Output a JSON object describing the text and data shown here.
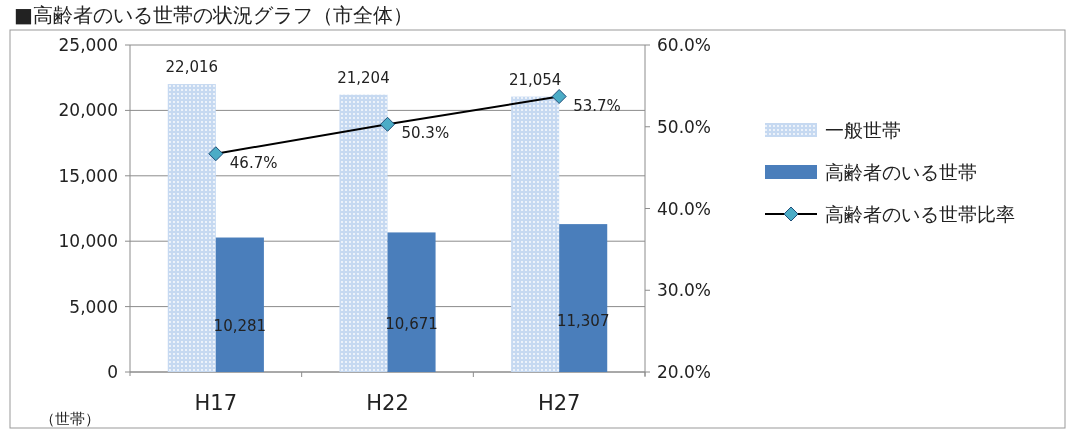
{
  "chart_data": {
    "type": "bar",
    "title": "■高齢者のいる世帯の状況グラフ（市全体）",
    "ylabel": "（世帯）",
    "categories": [
      "H17",
      "H22",
      "H27"
    ],
    "series": [
      {
        "name": "一般世帯",
        "color": "#c6d9f1",
        "values": [
          22016,
          21204,
          21054
        ],
        "value_labels": [
          "22,016",
          "21,204",
          "21,054"
        ]
      },
      {
        "name": "高齢者のいる世帯",
        "color": "#4a7ebb",
        "values": [
          10281,
          10671,
          11307
        ],
        "value_labels": [
          "10,281",
          "10,671",
          "11,307"
        ]
      },
      {
        "name": "高齢者のいる世帯比率",
        "type": "line",
        "axis": "y2",
        "color": "#000000",
        "marker": "diamond",
        "values": [
          46.7,
          50.3,
          53.7
        ],
        "value_labels": [
          "46.7%",
          "50.3%",
          "53.7%"
        ]
      }
    ],
    "ylim": [
      0,
      25000
    ],
    "yticks": [
      {
        "value": 0,
        "label": "0"
      },
      {
        "value": 5000,
        "label": "5,000"
      },
      {
        "value": 10000,
        "label": "10,000"
      },
      {
        "value": 15000,
        "label": "15,000"
      },
      {
        "value": 20000,
        "label": "20,000"
      },
      {
        "value": 25000,
        "label": "25,000"
      }
    ],
    "y2lim": [
      20,
      60
    ],
    "y2ticks": [
      {
        "value": 20,
        "label": "20.0%"
      },
      {
        "value": 30,
        "label": "30.0%"
      },
      {
        "value": 40,
        "label": "40.0%"
      },
      {
        "value": 50,
        "label": "50.0%"
      },
      {
        "value": 60,
        "label": "60.0%"
      }
    ],
    "grid": "y",
    "legend": "right"
  }
}
